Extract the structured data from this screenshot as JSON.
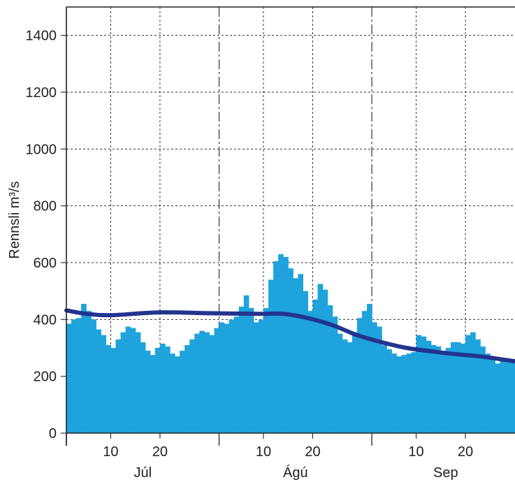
{
  "chart_data": {
    "type": "bar",
    "ylabel": "Rennsli  m³/s",
    "ylim": [
      0,
      1500
    ],
    "yticks": [
      0,
      200,
      400,
      600,
      800,
      1000,
      1200,
      1400
    ],
    "xlim_day": [
      1,
      92
    ],
    "months": [
      {
        "label": "Júl",
        "start_day": 1,
        "days": 31
      },
      {
        "label": "Ágú",
        "start_day": 32,
        "days": 31
      },
      {
        "label": "Sep",
        "start_day": 63,
        "days": 30
      }
    ],
    "day_ticks": [
      "10",
      "20"
    ],
    "grid": true,
    "colors": {
      "bars": "#1ea3dc",
      "mean_line": "#23338e",
      "grid": "#333333"
    },
    "series": [
      {
        "kind": "daily_discharge_bars",
        "values": [
          385,
          400,
          405,
          455,
          430,
          400,
          365,
          345,
          310,
          300,
          330,
          355,
          375,
          370,
          355,
          320,
          290,
          275,
          300,
          315,
          305,
          280,
          270,
          290,
          310,
          330,
          350,
          360,
          355,
          345,
          370,
          390,
          385,
          400,
          410,
          445,
          485,
          440,
          390,
          400,
          440,
          540,
          605,
          630,
          620,
          580,
          545,
          560,
          500,
          430,
          470,
          525,
          505,
          450,
          410,
          350,
          330,
          320,
          355,
          405,
          430,
          455,
          390,
          375,
          310,
          295,
          280,
          270,
          275,
          280,
          285,
          345,
          340,
          325,
          310,
          305,
          290,
          300,
          320,
          320,
          315,
          345,
          355,
          330,
          305,
          280,
          260,
          245,
          255,
          250,
          250,
          245
        ]
      },
      {
        "kind": "mean_curve",
        "points": [
          [
            1,
            432
          ],
          [
            5,
            420
          ],
          [
            10,
            415
          ],
          [
            20,
            425
          ],
          [
            30,
            422
          ],
          [
            40,
            420
          ],
          [
            45,
            420
          ],
          [
            50,
            405
          ],
          [
            55,
            380
          ],
          [
            60,
            345
          ],
          [
            65,
            320
          ],
          [
            70,
            300
          ],
          [
            75,
            288
          ],
          [
            80,
            278
          ],
          [
            85,
            270
          ],
          [
            90,
            258
          ],
          [
            92,
            253
          ]
        ]
      }
    ]
  }
}
